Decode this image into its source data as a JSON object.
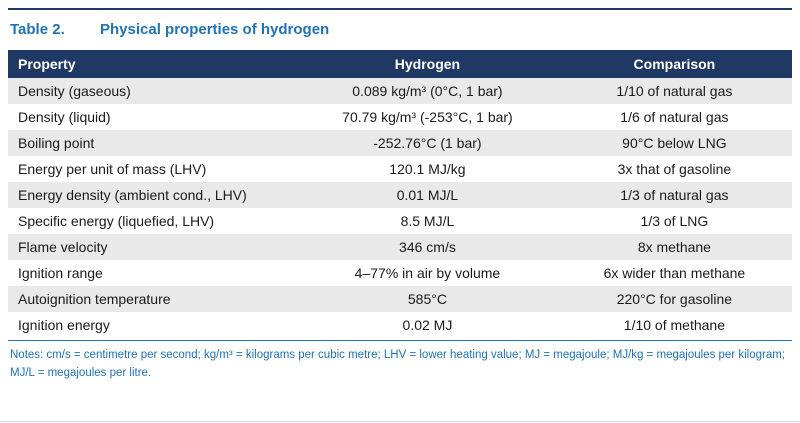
{
  "colors": {
    "header_bg": "#1F3864",
    "accent_blue": "#2272B4",
    "row_stripe": "#E9E9E9"
  },
  "title": {
    "label": "Table 2.",
    "text": "Physical properties of hydrogen"
  },
  "table": {
    "columns": {
      "property": "Property",
      "hydrogen": "Hydrogen",
      "comparison": "Comparison"
    },
    "rows": [
      {
        "property": "Density (gaseous)",
        "hydrogen": "0.089 kg/m³ (0°C, 1 bar)",
        "comparison": "1/10 of natural gas"
      },
      {
        "property": "Density (liquid)",
        "hydrogen": "70.79 kg/m³ (-253°C, 1 bar)",
        "comparison": "1/6 of natural gas"
      },
      {
        "property": "Boiling point",
        "hydrogen": "-252.76°C (1 bar)",
        "comparison": "90°C below LNG"
      },
      {
        "property": "Energy per unit of mass (LHV)",
        "hydrogen": "120.1 MJ/kg",
        "comparison": "3x that of gasoline"
      },
      {
        "property": "Energy density (ambient cond., LHV)",
        "hydrogen": "0.01 MJ/L",
        "comparison": "1/3 of natural gas"
      },
      {
        "property": "Specific energy (liquefied, LHV)",
        "hydrogen": "8.5 MJ/L",
        "comparison": "1/3 of LNG"
      },
      {
        "property": "Flame velocity",
        "hydrogen": "346 cm/s",
        "comparison": "8x methane"
      },
      {
        "property": "Ignition range",
        "hydrogen": "4–77% in air by volume",
        "comparison": "6x wider than methane"
      },
      {
        "property": "Autoignition temperature",
        "hydrogen": "585°C",
        "comparison": "220°C for gasoline"
      },
      {
        "property": "Ignition energy",
        "hydrogen": "0.02 MJ",
        "comparison": "1/10 of methane"
      }
    ]
  },
  "notes": "Notes: cm/s = centimetre per second; kg/m³ = kilograms per cubic metre; LHV = lower heating value; MJ = megajoule; MJ/kg = megajoules per kilogram; MJ/L = megajoules per litre."
}
